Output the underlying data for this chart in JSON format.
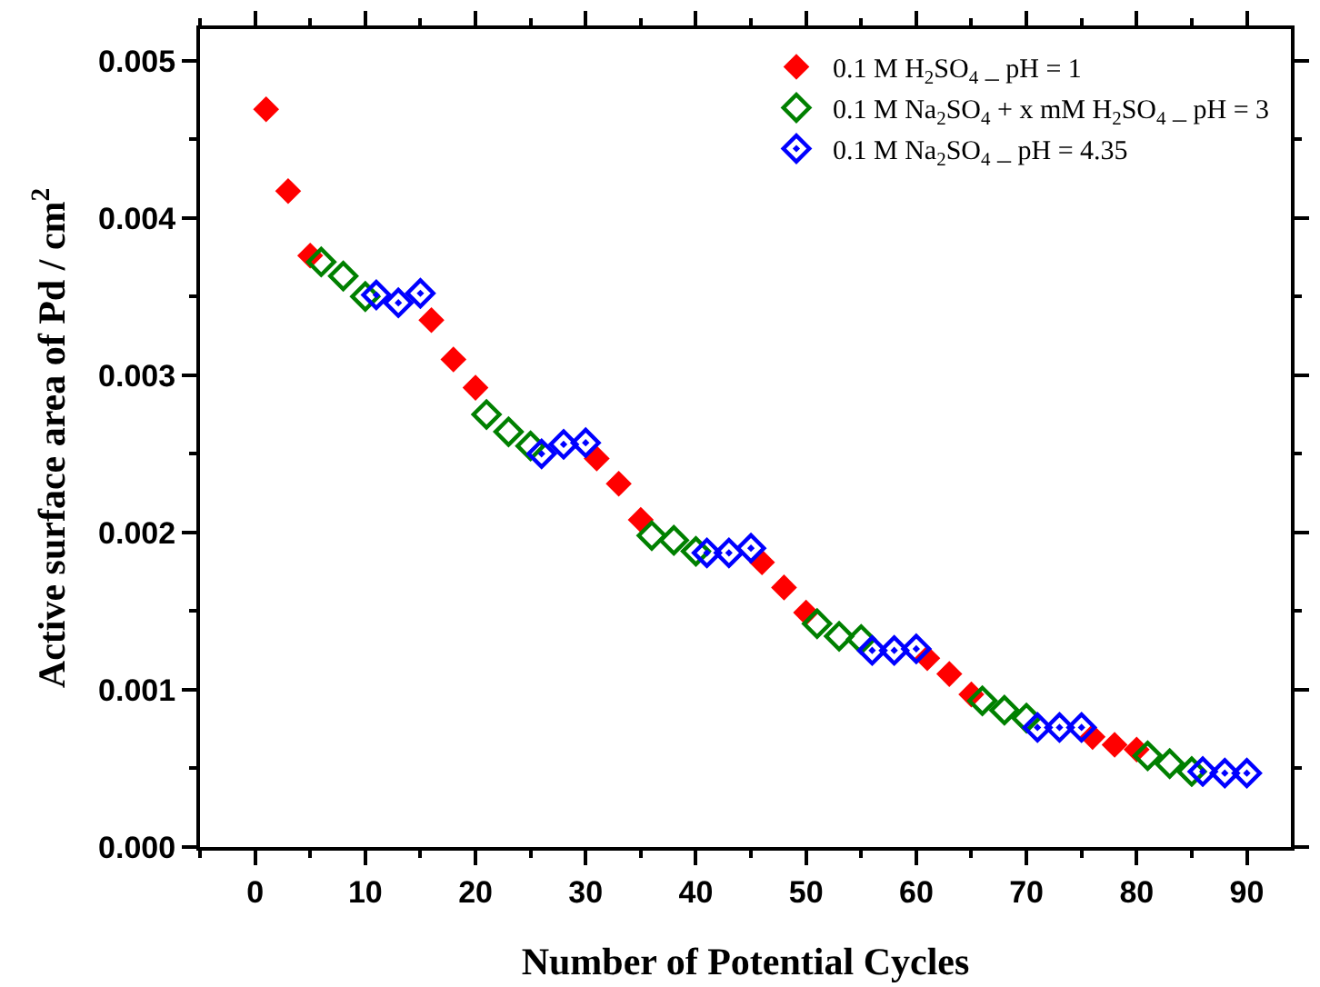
{
  "chart_data": {
    "type": "scatter",
    "xlabel": "Number of Potential Cycles",
    "ylabel": "Active surface area of Pd / cm$^{2}$",
    "xlim": [
      -5,
      94
    ],
    "xticks": [
      0,
      10,
      20,
      30,
      40,
      50,
      60,
      70,
      80,
      90
    ],
    "ylim": [
      0,
      0.0052
    ],
    "yticks": [
      {
        "value": 0,
        "label": "0.000"
      },
      {
        "value": 0.001,
        "label": "0.001"
      },
      {
        "value": 0.002,
        "label": "0.002"
      },
      {
        "value": 0.003,
        "label": "0.003"
      },
      {
        "value": 0.004,
        "label": "0.004"
      },
      {
        "value": 0.005,
        "label": "0.005"
      }
    ],
    "legend": "top right",
    "series": [
      {
        "name": "0.1 M H$_{2}$SO$_{4}$ _ pH = 1",
        "color": "#ff0000",
        "marker": "diamond",
        "x": [
          1,
          3,
          5,
          16,
          18,
          20,
          31,
          33,
          35,
          46,
          48,
          50,
          61,
          63,
          65,
          76,
          78,
          80
        ],
        "values": [
          0.00469,
          0.00417,
          0.00376,
          0.00335,
          0.0031,
          0.00292,
          0.00247,
          0.00231,
          0.00208,
          0.00181,
          0.00165,
          0.00149,
          0.0012,
          0.0011,
          0.00097,
          0.0007,
          0.00065,
          0.00062
        ]
      },
      {
        "name": "0.1 M Na$_{2}$SO$_{4}$ + x mM H$_{2}$SO$_{4}$ _ pH = 3",
        "color": "#008000",
        "marker": "diamond-open",
        "x": [
          6,
          8,
          10,
          21,
          23,
          25,
          36,
          38,
          40,
          51,
          53,
          55,
          66,
          68,
          70,
          81,
          83,
          85
        ],
        "values": [
          0.00372,
          0.00363,
          0.0035,
          0.00275,
          0.00264,
          0.00255,
          0.00198,
          0.00195,
          0.00188,
          0.00142,
          0.00134,
          0.00132,
          0.00093,
          0.00087,
          0.00082,
          0.00058,
          0.00053,
          0.00048
        ]
      },
      {
        "name": "0.1 M Na$_{2}$SO$_{4}$ _ pH = 4.35",
        "color": "#0000ff",
        "marker": "diamond-half",
        "x": [
          11,
          13,
          15,
          26,
          28,
          30,
          41,
          43,
          45,
          56,
          58,
          60,
          71,
          73,
          75,
          86,
          88,
          90
        ],
        "values": [
          0.00351,
          0.00346,
          0.00352,
          0.0025,
          0.00256,
          0.00257,
          0.00187,
          0.00187,
          0.0019,
          0.00125,
          0.00125,
          0.00126,
          0.00076,
          0.00076,
          0.00076,
          0.00048,
          0.00047,
          0.00047
        ]
      }
    ]
  }
}
